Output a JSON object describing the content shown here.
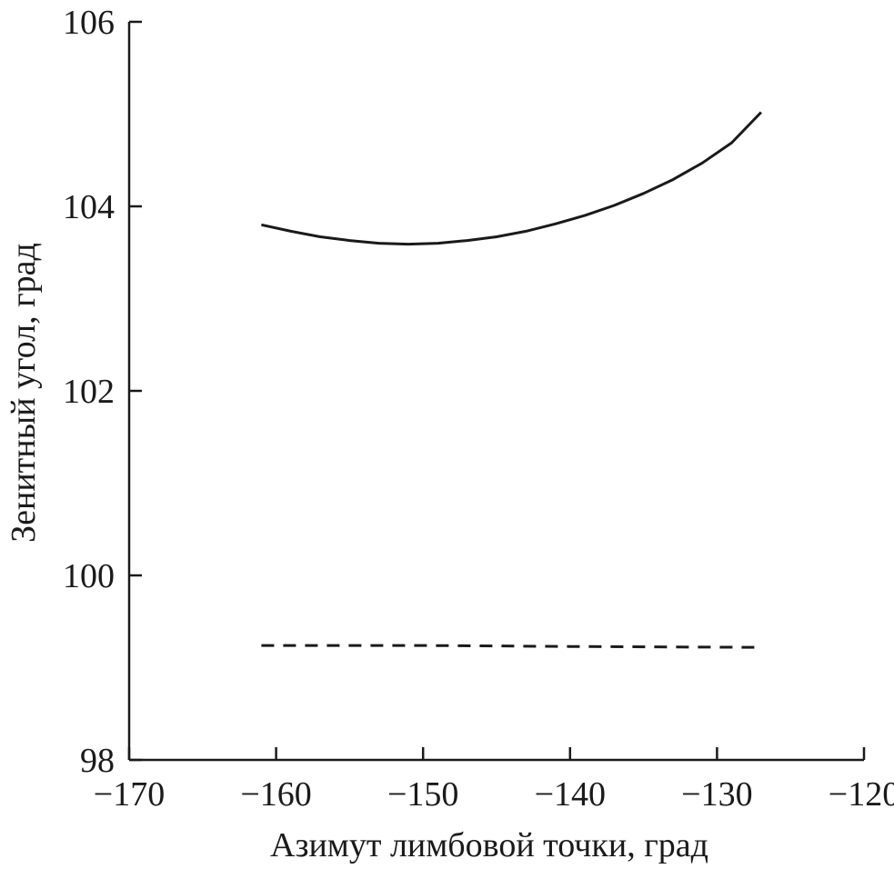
{
  "chart_data": {
    "type": "line",
    "title": "",
    "xlabel": "Азимут лимбовой точки, град",
    "ylabel": "Зенитный угол, град",
    "xlim": [
      -170,
      -120
    ],
    "ylim": [
      98,
      106
    ],
    "x_ticks": [
      -170,
      -160,
      -150,
      -140,
      -130,
      -120
    ],
    "y_ticks": [
      98,
      100,
      102,
      104,
      106
    ],
    "x_tick_labels": [
      "−170",
      "−160",
      "−150",
      "−140",
      "−130",
      "−120"
    ],
    "y_tick_labels": [
      "98",
      "100",
      "102",
      "104",
      "106"
    ],
    "grid": false,
    "series": [
      {
        "style": "solid",
        "x": [
          -161,
          -159,
          -157,
          -155,
          -153,
          -151,
          -149,
          -147,
          -145,
          -143,
          -141,
          -139,
          -137,
          -135,
          -133,
          -131,
          -129,
          -127
        ],
        "y": [
          103.8,
          103.73,
          103.67,
          103.63,
          103.6,
          103.59,
          103.6,
          103.63,
          103.67,
          103.73,
          103.81,
          103.9,
          104.01,
          104.14,
          104.29,
          104.47,
          104.69,
          105.02
        ]
      },
      {
        "style": "dashed",
        "x": [
          -161,
          -150,
          -140,
          -127
        ],
        "y": [
          99.24,
          99.24,
          99.23,
          99.22
        ]
      }
    ]
  }
}
